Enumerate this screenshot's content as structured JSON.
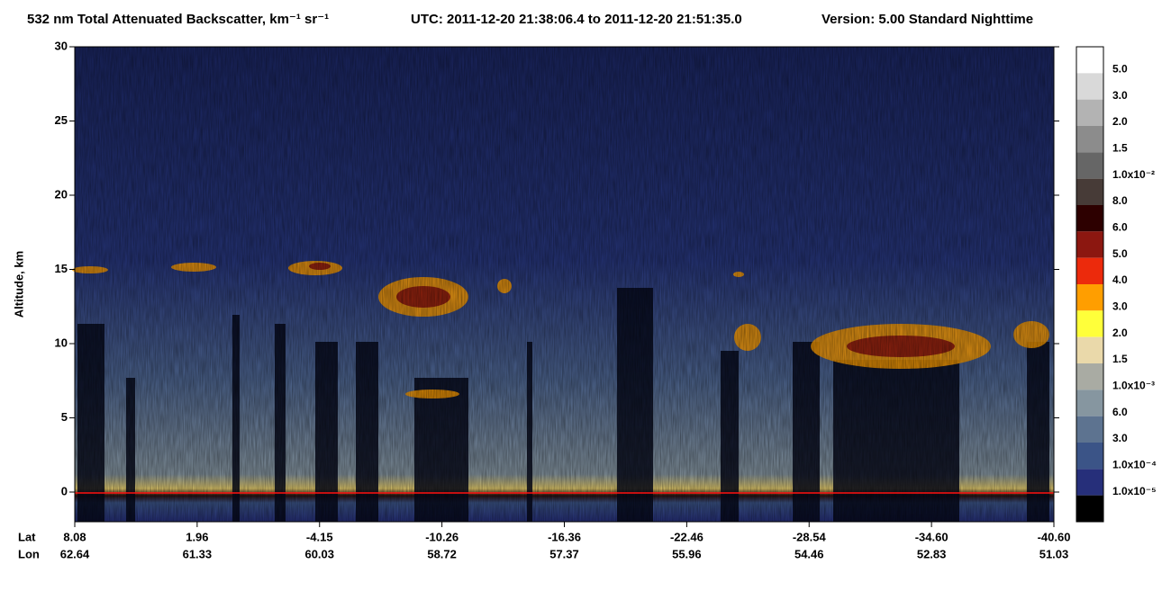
{
  "chart_data": {
    "type": "curtain",
    "title": "532 nm Total Attenuated Backscatter, km⁻¹ sr⁻¹",
    "utc": "UTC:  2011-12-20 21:38:06.4  to  2011-12-20 21:51:35.0",
    "version": "Version: 5.00  Standard  Nighttime",
    "ylabel": "Altitude, km",
    "ylim": [
      -2,
      30
    ],
    "yticks": [
      0,
      5,
      10,
      15,
      20,
      25,
      30
    ],
    "x_row_labels": [
      "Lat",
      "Lon"
    ],
    "lat": [
      "8.08",
      "1.96",
      "-4.15",
      "-10.26",
      "-16.36",
      "-22.46",
      "-28.54",
      "-34.60",
      "-40.60"
    ],
    "lon": [
      "62.64",
      "61.33",
      "60.03",
      "58.72",
      "57.37",
      "55.96",
      "54.46",
      "52.83",
      "51.03"
    ],
    "colorbar": {
      "colors": [
        "#ffffff",
        "#d9d9d9",
        "#b3b3b3",
        "#8c8c8c",
        "#666666",
        "#473b37",
        "#2d0000",
        "#8c1710",
        "#ec2a0c",
        "#ff9e00",
        "#ffff3a",
        "#ead9aa",
        "#a9aba3",
        "#8696a0",
        "#5d7390",
        "#3b5487",
        "#262f7a",
        "#000000"
      ],
      "labels": [
        "5.0",
        "3.0",
        "2.0",
        "1.5",
        "1.0x10⁻²",
        "8.0",
        "6.0",
        "5.0",
        "4.0",
        "3.0",
        "2.0",
        "1.5",
        "1.0x10⁻³",
        "6.0",
        "3.0",
        "1.0x10⁻⁴",
        "1.0x10⁻⁵"
      ]
    }
  }
}
